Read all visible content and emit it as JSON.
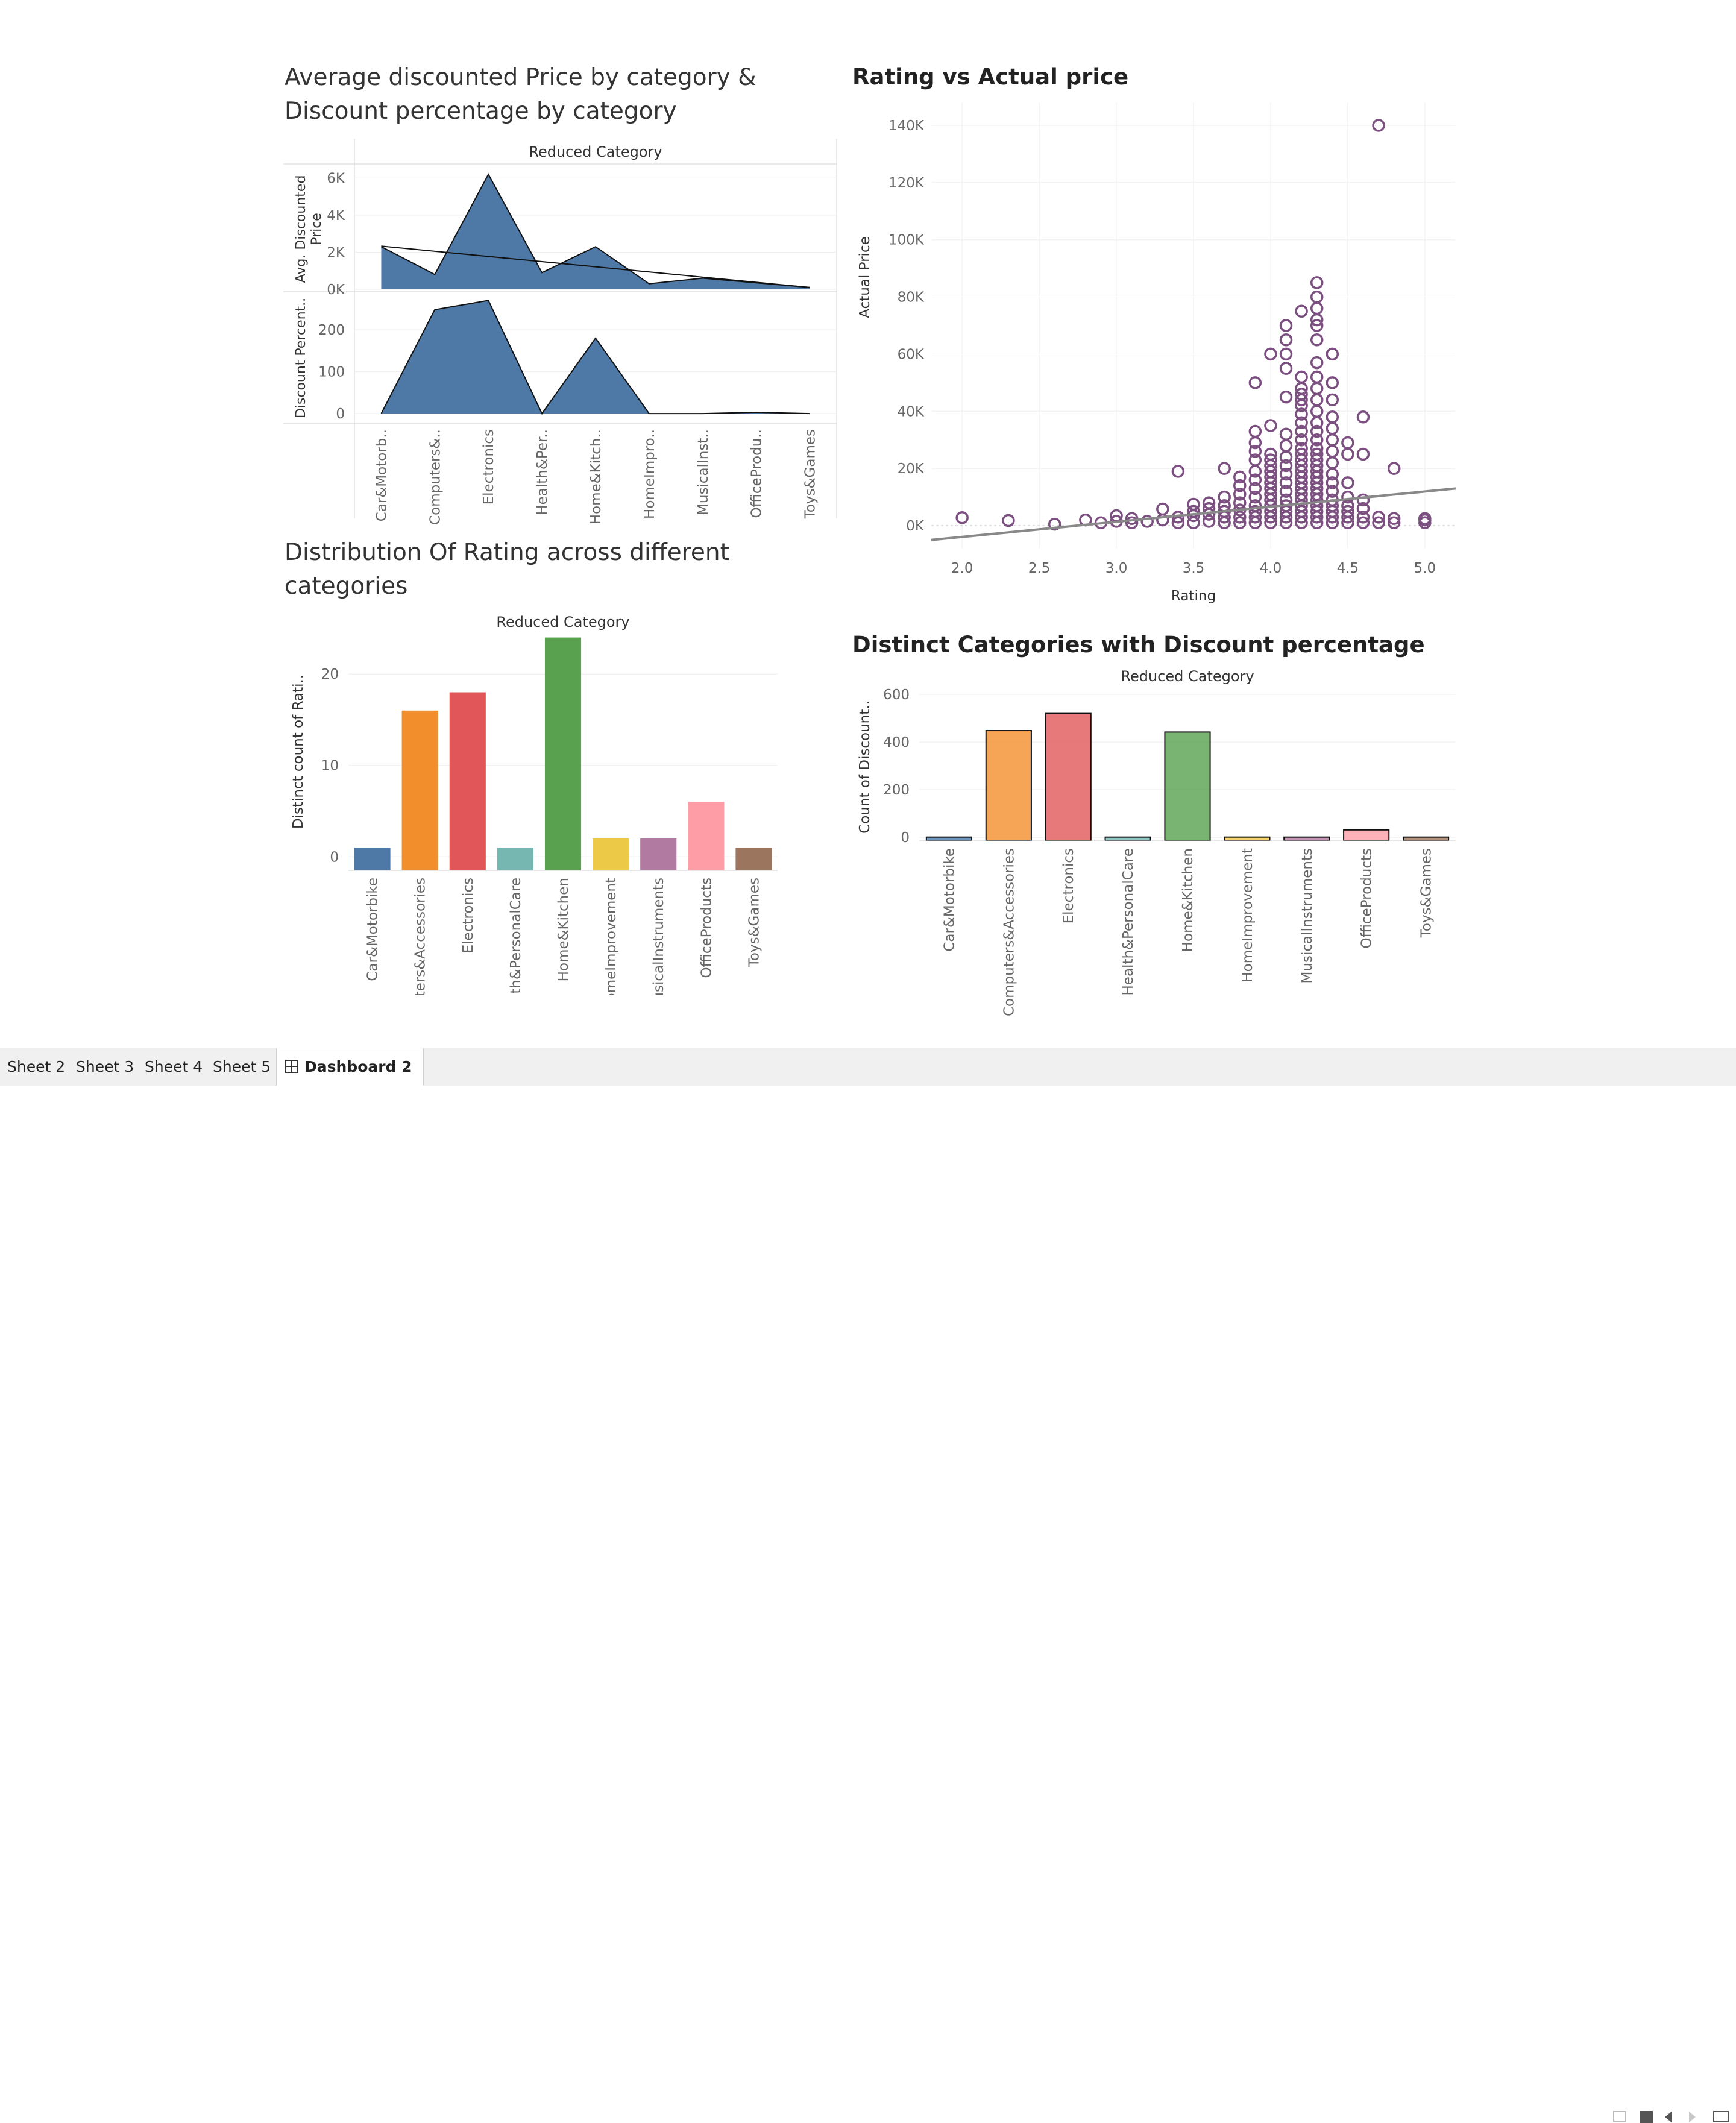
{
  "tabs": [
    {
      "label": "Sheet 2",
      "active": false
    },
    {
      "label": "Sheet 3",
      "active": false
    },
    {
      "label": "Sheet 4",
      "active": false
    },
    {
      "label": "Sheet 5",
      "active": false
    },
    {
      "label": "Dashboard 2",
      "active": true
    }
  ],
  "panels": {
    "area": {
      "title_line1": "Average discounted Price by category &",
      "title_line2": "Discount percentage by category"
    },
    "scatter": {
      "title": "Rating vs Actual price"
    },
    "rating_dist": {
      "title_line1": "Distribution Of Rating across different",
      "title_line2": "categories"
    },
    "discount_count": {
      "title": "Distinct Categories with Discount percentage"
    }
  },
  "chart_data": [
    {
      "id": "area",
      "type": "area",
      "header": "Reduced Category",
      "categories": [
        "Car&Motorb..",
        "Computers&..",
        "Electronics",
        "Health&Per..",
        "Home&Kitch..",
        "HomeImpro..",
        "MusicalInst..",
        "OfficeProdu..",
        "Toys&Games"
      ],
      "series": [
        {
          "ylabel": "Avg. Discounted Price",
          "values": [
            2300,
            800,
            6200,
            900,
            2300,
            300,
            600,
            350,
            100
          ],
          "trend": [
            2330,
            100
          ],
          "yticks": [
            "0K",
            "2K",
            "4K",
            "6K"
          ],
          "ytick_values": [
            0,
            2000,
            4000,
            6000
          ],
          "ylim": [
            0,
            6500
          ]
        },
        {
          "ylabel": "Discount Percent..",
          "values": [
            0,
            248,
            270,
            0,
            180,
            0,
            0,
            3,
            0
          ],
          "yticks": [
            "0",
            "100",
            "200"
          ],
          "ytick_values": [
            0,
            100,
            200
          ],
          "ylim": [
            -20,
            285
          ]
        }
      ],
      "color": "#4e79a7"
    },
    {
      "id": "scatter",
      "type": "scatter",
      "xlabel": "Rating",
      "ylabel": "Actual Price",
      "xlim": [
        1.8,
        5.2
      ],
      "ylim": [
        -8000,
        148000
      ],
      "xticks": [
        "2.0",
        "2.5",
        "3.0",
        "3.5",
        "4.0",
        "4.5",
        "5.0"
      ],
      "xtick_values": [
        2.0,
        2.5,
        3.0,
        3.5,
        4.0,
        4.5,
        5.0
      ],
      "yticks": [
        "0K",
        "20K",
        "40K",
        "60K",
        "80K",
        "100K",
        "120K",
        "140K"
      ],
      "ytick_values": [
        0,
        20000,
        40000,
        60000,
        80000,
        100000,
        120000,
        140000
      ],
      "trend": [
        [
          1.8,
          -5000
        ],
        [
          5.2,
          13000
        ]
      ],
      "color": "#7b4f7f",
      "points": [
        [
          2.0,
          2800
        ],
        [
          2.3,
          1800
        ],
        [
          2.6,
          500
        ],
        [
          2.8,
          2000
        ],
        [
          2.9,
          1000
        ],
        [
          3.0,
          1500
        ],
        [
          3.0,
          3500
        ],
        [
          3.1,
          2500
        ],
        [
          3.1,
          1000
        ],
        [
          3.2,
          1500
        ],
        [
          3.3,
          2000
        ],
        [
          3.3,
          5800
        ],
        [
          3.4,
          1000
        ],
        [
          3.4,
          3000
        ],
        [
          3.4,
          19000
        ],
        [
          3.5,
          1000
        ],
        [
          3.5,
          3500
        ],
        [
          3.5,
          5000
        ],
        [
          3.5,
          7500
        ],
        [
          3.6,
          1500
        ],
        [
          3.6,
          4000
        ],
        [
          3.6,
          6000
        ],
        [
          3.6,
          8000
        ],
        [
          3.7,
          1000
        ],
        [
          3.7,
          3000
        ],
        [
          3.7,
          5000
        ],
        [
          3.7,
          7000
        ],
        [
          3.7,
          10000
        ],
        [
          3.7,
          20000
        ],
        [
          3.8,
          1000
        ],
        [
          3.8,
          3000
        ],
        [
          3.8,
          5500
        ],
        [
          3.8,
          8000
        ],
        [
          3.8,
          11000
        ],
        [
          3.8,
          14000
        ],
        [
          3.8,
          17000
        ],
        [
          3.9,
          1000
        ],
        [
          3.9,
          3000
        ],
        [
          3.9,
          5000
        ],
        [
          3.9,
          7000
        ],
        [
          3.9,
          10000
        ],
        [
          3.9,
          13000
        ],
        [
          3.9,
          16000
        ],
        [
          3.9,
          19000
        ],
        [
          3.9,
          23000
        ],
        [
          3.9,
          26000
        ],
        [
          3.9,
          29000
        ],
        [
          3.9,
          33000
        ],
        [
          3.9,
          50000
        ],
        [
          4.0,
          1000
        ],
        [
          4.0,
          3000
        ],
        [
          4.0,
          5000
        ],
        [
          4.0,
          7000
        ],
        [
          4.0,
          9000
        ],
        [
          4.0,
          11000
        ],
        [
          4.0,
          13000
        ],
        [
          4.0,
          15000
        ],
        [
          4.0,
          17000
        ],
        [
          4.0,
          19000
        ],
        [
          4.0,
          21000
        ],
        [
          4.0,
          23000
        ],
        [
          4.0,
          25000
        ],
        [
          4.0,
          35000
        ],
        [
          4.0,
          60000
        ],
        [
          4.1,
          1000
        ],
        [
          4.1,
          3000
        ],
        [
          4.1,
          5000
        ],
        [
          4.1,
          7000
        ],
        [
          4.1,
          9000
        ],
        [
          4.1,
          12000
        ],
        [
          4.1,
          15000
        ],
        [
          4.1,
          18000
        ],
        [
          4.1,
          21000
        ],
        [
          4.1,
          24000
        ],
        [
          4.1,
          28000
        ],
        [
          4.1,
          32000
        ],
        [
          4.1,
          45000
        ],
        [
          4.1,
          55000
        ],
        [
          4.1,
          60000
        ],
        [
          4.1,
          65000
        ],
        [
          4.1,
          70000
        ],
        [
          4.2,
          1000
        ],
        [
          4.2,
          3000
        ],
        [
          4.2,
          5000
        ],
        [
          4.2,
          7000
        ],
        [
          4.2,
          9000
        ],
        [
          4.2,
          11000
        ],
        [
          4.2,
          13000
        ],
        [
          4.2,
          15000
        ],
        [
          4.2,
          17000
        ],
        [
          4.2,
          19000
        ],
        [
          4.2,
          21000
        ],
        [
          4.2,
          23000
        ],
        [
          4.2,
          25000
        ],
        [
          4.2,
          27000
        ],
        [
          4.2,
          30000
        ],
        [
          4.2,
          33000
        ],
        [
          4.2,
          36000
        ],
        [
          4.2,
          39000
        ],
        [
          4.2,
          42000
        ],
        [
          4.2,
          44000
        ],
        [
          4.2,
          46000
        ],
        [
          4.2,
          48000
        ],
        [
          4.2,
          52000
        ],
        [
          4.2,
          75000
        ],
        [
          4.3,
          1000
        ],
        [
          4.3,
          3000
        ],
        [
          4.3,
          5000
        ],
        [
          4.3,
          7000
        ],
        [
          4.3,
          9000
        ],
        [
          4.3,
          11000
        ],
        [
          4.3,
          13000
        ],
        [
          4.3,
          15000
        ],
        [
          4.3,
          17000
        ],
        [
          4.3,
          19000
        ],
        [
          4.3,
          21000
        ],
        [
          4.3,
          23000
        ],
        [
          4.3,
          25000
        ],
        [
          4.3,
          27000
        ],
        [
          4.3,
          30000
        ],
        [
          4.3,
          33000
        ],
        [
          4.3,
          36000
        ],
        [
          4.3,
          40000
        ],
        [
          4.3,
          44000
        ],
        [
          4.3,
          48000
        ],
        [
          4.3,
          52000
        ],
        [
          4.3,
          57000
        ],
        [
          4.3,
          65000
        ],
        [
          4.3,
          70000
        ],
        [
          4.3,
          72000
        ],
        [
          4.3,
          76000
        ],
        [
          4.3,
          80000
        ],
        [
          4.3,
          85000
        ],
        [
          4.4,
          1000
        ],
        [
          4.4,
          3000
        ],
        [
          4.4,
          5000
        ],
        [
          4.4,
          7000
        ],
        [
          4.4,
          9000
        ],
        [
          4.4,
          12000
        ],
        [
          4.4,
          15000
        ],
        [
          4.4,
          18000
        ],
        [
          4.4,
          22000
        ],
        [
          4.4,
          26000
        ],
        [
          4.4,
          30000
        ],
        [
          4.4,
          34000
        ],
        [
          4.4,
          38000
        ],
        [
          4.4,
          44000
        ],
        [
          4.4,
          50000
        ],
        [
          4.4,
          60000
        ],
        [
          4.5,
          1000
        ],
        [
          4.5,
          3000
        ],
        [
          4.5,
          5000
        ],
        [
          4.5,
          7000
        ],
        [
          4.5,
          10000
        ],
        [
          4.5,
          15000
        ],
        [
          4.5,
          25000
        ],
        [
          4.5,
          29000
        ],
        [
          4.6,
          1000
        ],
        [
          4.6,
          3000
        ],
        [
          4.6,
          6000
        ],
        [
          4.6,
          9000
        ],
        [
          4.6,
          25000
        ],
        [
          4.6,
          38000
        ],
        [
          4.7,
          1000
        ],
        [
          4.7,
          3000
        ],
        [
          4.7,
          140000
        ],
        [
          4.8,
          1000
        ],
        [
          4.8,
          2500
        ],
        [
          4.8,
          20000
        ],
        [
          5.0,
          1000
        ],
        [
          5.0,
          2000
        ],
        [
          5.0,
          2500
        ]
      ]
    },
    {
      "id": "rating_dist",
      "type": "bar",
      "header": "Reduced Category",
      "ylabel": "Distinct count of Rati..",
      "categories": [
        "Car&Motorbike",
        "Computers&Accessories",
        "Electronics",
        "Health&PersonalCare",
        "Home&Kitchen",
        "HomeImprovement",
        "MusicalInstruments",
        "OfficeProducts",
        "Toys&Games"
      ],
      "values": [
        1,
        16,
        18,
        1,
        24,
        2,
        2,
        6,
        1
      ],
      "colors": [
        "#4e79a7",
        "#f28e2b",
        "#e15759",
        "#76b7b2",
        "#59a14f",
        "#edc948",
        "#b07aa1",
        "#ff9da7",
        "#9c755f"
      ],
      "yticks": [
        "0",
        "10",
        "20"
      ],
      "ytick_values": [
        0,
        10,
        20
      ],
      "ylim": [
        -1.5,
        24.5
      ]
    },
    {
      "id": "discount_count",
      "type": "bar",
      "header": "Reduced Category",
      "ylabel": "Count of Discount..",
      "categories": [
        "Car&Motorbike",
        "Computers&Accessories",
        "Electronics",
        "Health&PersonalCare",
        "Home&Kitchen",
        "HomeImprovement",
        "MusicalInstruments",
        "OfficeProducts",
        "Toys&Games"
      ],
      "values": [
        1,
        448,
        520,
        1,
        442,
        1,
        1,
        31,
        1
      ],
      "colors": [
        "#4e79a7",
        "#f28e2b",
        "#e15759",
        "#76b7b2",
        "#59a14f",
        "#edc948",
        "#b07aa1",
        "#ff9da7",
        "#9c755f"
      ],
      "yticks": [
        "0",
        "200",
        "400",
        "600"
      ],
      "ytick_values": [
        0,
        200,
        400,
        600
      ],
      "ylim": [
        -15,
        605
      ]
    }
  ]
}
